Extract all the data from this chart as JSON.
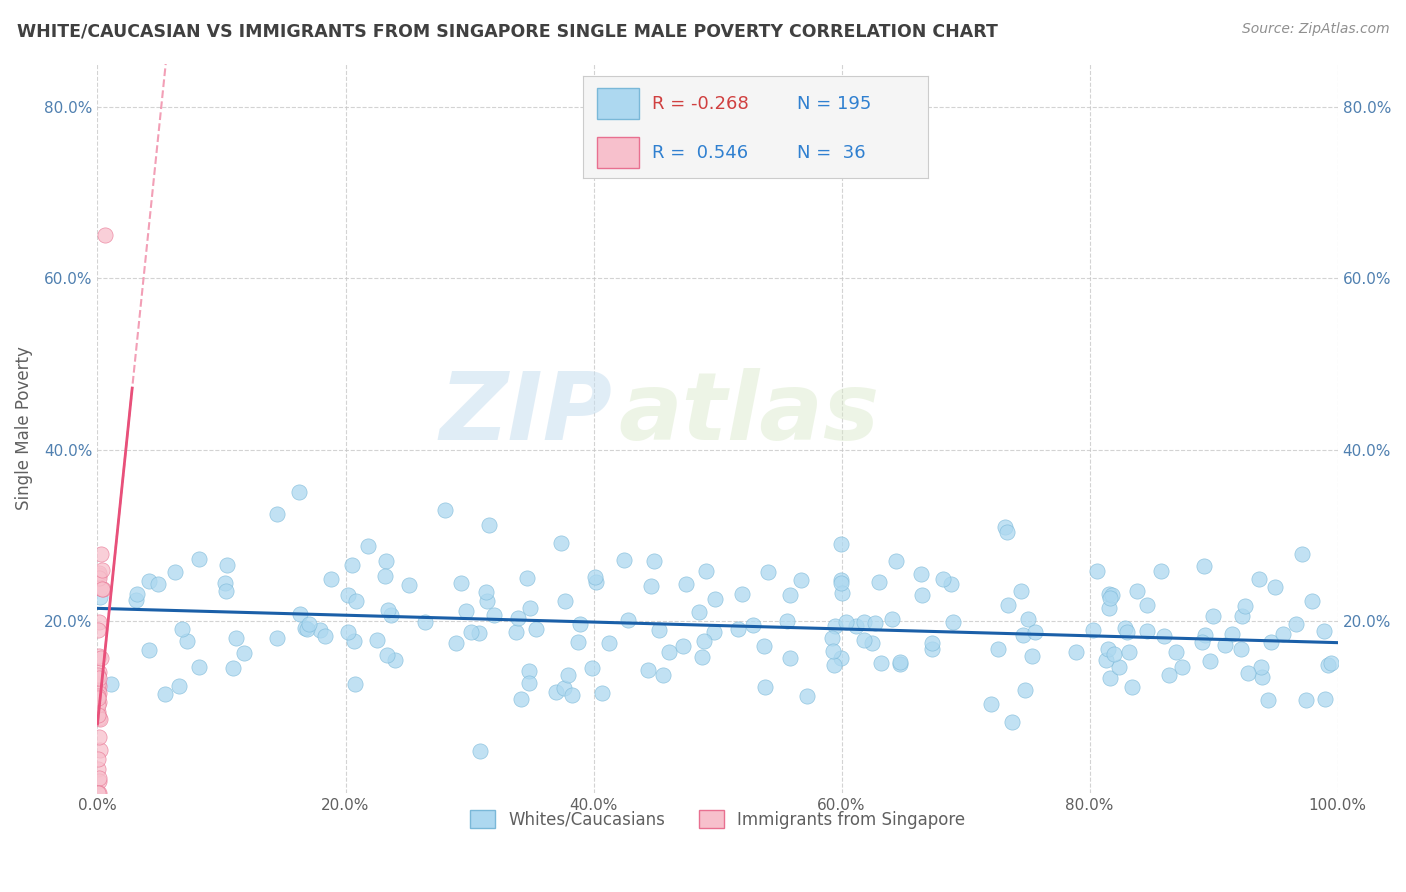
{
  "title": "WHITE/CAUCASIAN VS IMMIGRANTS FROM SINGAPORE SINGLE MALE POVERTY CORRELATION CHART",
  "source": "Source: ZipAtlas.com",
  "ylabel": "Single Male Poverty",
  "watermark_zip": "ZIP",
  "watermark_atlas": "atlas",
  "series": [
    {
      "name": "Whites/Caucasians",
      "R": -0.268,
      "N": 195,
      "color": "#add8f0",
      "edge_color": "#7ab8d8",
      "line_color": "#1a5fa8"
    },
    {
      "name": "Immigrants from Singapore",
      "R": 0.546,
      "N": 36,
      "color": "#f7c0cc",
      "edge_color": "#e87090",
      "line_color": "#e8507a"
    }
  ],
  "xlim": [
    0.0,
    1.0
  ],
  "ylim": [
    0.0,
    0.85
  ],
  "xticks": [
    0.0,
    0.2,
    0.4,
    0.6,
    0.8,
    1.0
  ],
  "xtick_labels": [
    "0.0%",
    "20.0%",
    "40.0%",
    "60.0%",
    "80.0%",
    "100.0%"
  ],
  "yticks": [
    0.2,
    0.4,
    0.6,
    0.8
  ],
  "ytick_labels": [
    "20.0%",
    "40.0%",
    "60.0%",
    "80.0%"
  ],
  "background_color": "#ffffff",
  "grid_color": "#c8c8c8",
  "title_color": "#404040",
  "source_color": "#909090",
  "tick_color": "#5080b0",
  "legend_box_color": "#f5f5f5",
  "legend_border_color": "#cccccc",
  "R_neg_color": "#d04040",
  "R_pos_color": "#3080d0",
  "N_color": "#3080d0",
  "bottom_label_color": "#606060"
}
